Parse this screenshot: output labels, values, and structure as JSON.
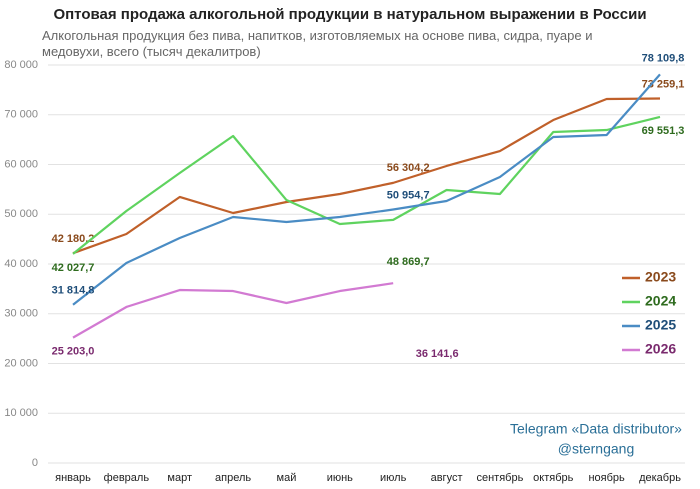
{
  "chart_data": {
    "type": "line",
    "title": "Оптовая продажа алкогольной продукции в натуральном выражении в России",
    "subtitle": "Алкогольная продукция без пива, напитков, изготовляемых на основе пива, сидра, пуаре и медовухи, всего (тысяч декалитров)",
    "annotations": [
      "Telegram «Data distributor»",
      "@sterngang"
    ],
    "categories": [
      "январь",
      "февраль",
      "март",
      "апрель",
      "май",
      "июнь",
      "июль",
      "август",
      "сентябрь",
      "октябрь",
      "ноябрь",
      "декабрь"
    ],
    "series": [
      {
        "name": "2023",
        "color": "#c0602a",
        "label_color": "#8a4a1c",
        "values": [
          42180.2,
          46030,
          53470,
          50250,
          52460,
          54070,
          56304.2,
          59700,
          62710,
          68940,
          73170,
          73259.1
        ],
        "value_labels": [
          "42 180,2",
          null,
          null,
          null,
          null,
          null,
          "56 304,2",
          null,
          null,
          null,
          null,
          "73 259,1"
        ]
      },
      {
        "name": "2024",
        "color": "#5fd35f",
        "label_color": "#2e6b1e",
        "values": [
          42027.7,
          50650,
          58290,
          65730,
          52860,
          48040,
          48869.7,
          54870,
          54070,
          66530,
          66930,
          69551.3
        ],
        "value_labels": [
          "42 027,7",
          null,
          null,
          null,
          null,
          null,
          "48 869,7",
          null,
          null,
          null,
          null,
          "69 551,3"
        ]
      },
      {
        "name": "2025",
        "color": "#4a8cc4",
        "label_color": "#1f4e79",
        "values": [
          31814.8,
          40200,
          45230,
          49450,
          48440,
          49450,
          50954.7,
          52660,
          57490,
          65530,
          65930,
          78109.8
        ],
        "value_labels": [
          "31 814,8",
          null,
          null,
          null,
          null,
          null,
          "50 954,7",
          null,
          null,
          null,
          null,
          "78 109,8"
        ]
      },
      {
        "name": "2026",
        "color": "#d27ad2",
        "label_color": "#7a2a6e",
        "values": [
          25203.0,
          31360,
          34770,
          34570,
          32160,
          34570,
          36141.6,
          null,
          null,
          null,
          null,
          null
        ],
        "value_labels": [
          "25 203,0",
          null,
          null,
          null,
          null,
          null,
          "36 141,6",
          null,
          null,
          null,
          null,
          null
        ]
      }
    ],
    "ylim": [
      0,
      80000
    ],
    "yticks": [
      0,
      {
        "value": 10000,
        "label": "10 000"
      },
      {
        "value": 20000,
        "label": "20 000"
      },
      {
        "value": 30000,
        "label": "30 000"
      },
      {
        "value": 40000,
        "label": "40 000"
      },
      {
        "value": 50000,
        "label": "50 000"
      },
      {
        "value": 60000,
        "label": "60 000"
      },
      {
        "value": 70000,
        "label": "70 000"
      },
      {
        "value": 80000,
        "label": "80 000"
      }
    ],
    "grid": true,
    "legend": "right"
  }
}
